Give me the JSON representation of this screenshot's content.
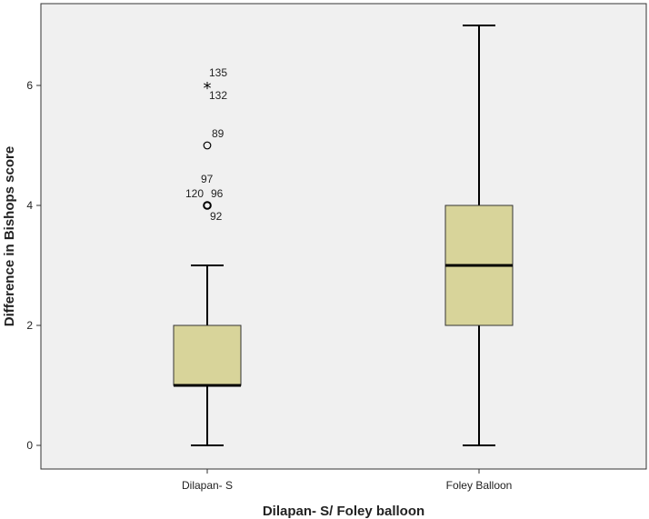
{
  "chart_data": {
    "type": "boxplot",
    "title": "",
    "xlabel": "Dilapan- S/ Foley balloon",
    "ylabel": "Difference in Bishops score",
    "ylim": [
      -0.8,
      7.2
    ],
    "yticks": [
      0,
      2,
      4,
      6
    ],
    "grid": false,
    "plot_background": "#f0f0f0",
    "box_color": "#d8d49a",
    "categories": [
      "Dilapan- S",
      "Foley Balloon"
    ],
    "boxes": [
      {
        "category": "Dilapan- S",
        "whisker_low": 0,
        "q1": 1,
        "median": 1,
        "q3": 2,
        "whisker_high": 3,
        "outliers": [
          {
            "value": 4,
            "marker": "circle",
            "labels": [
              "97",
              "120",
              "96",
              "92"
            ]
          },
          {
            "value": 5,
            "marker": "circle",
            "labels": [
              "89"
            ]
          },
          {
            "value": 6,
            "marker": "star",
            "labels": [
              "135",
              "132"
            ]
          }
        ]
      },
      {
        "category": "Foley Balloon",
        "whisker_low": 0,
        "q1": 2,
        "median": 3,
        "q3": 4,
        "whisker_high": 7,
        "outliers": []
      }
    ]
  }
}
